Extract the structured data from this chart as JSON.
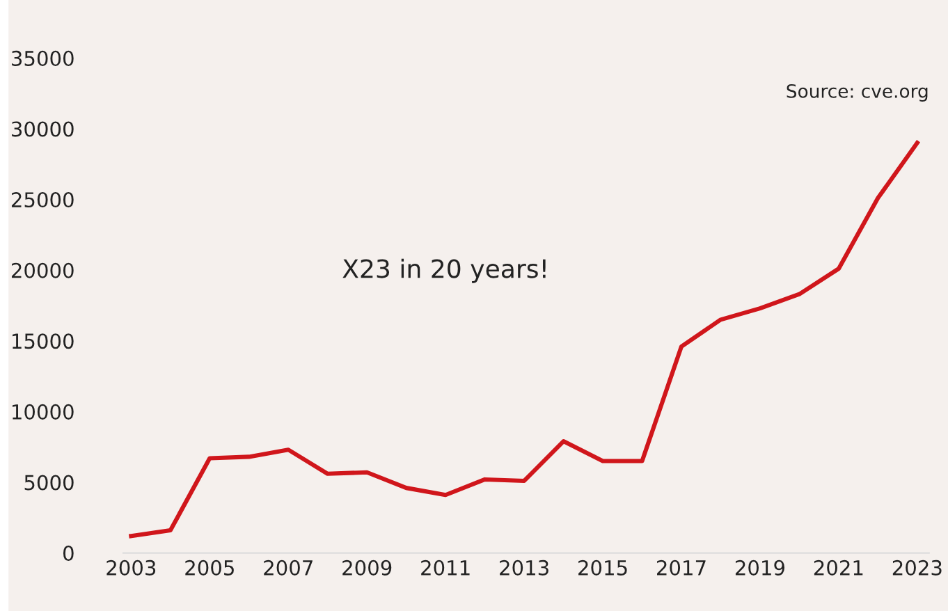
{
  "chart_data": {
    "type": "line",
    "x": [
      2003,
      2004,
      2005,
      2006,
      2007,
      2008,
      2009,
      2010,
      2011,
      2012,
      2013,
      2014,
      2015,
      2016,
      2017,
      2018,
      2019,
      2020,
      2021,
      2022,
      2023
    ],
    "series": [
      {
        "color": "#d0161b",
        "values": [
          1200,
          1600,
          6700,
          6800,
          7300,
          5600,
          5700,
          4600,
          4100,
          5200,
          5100,
          7900,
          6500,
          6500,
          14600,
          16500,
          17300,
          18300,
          20100,
          25100,
          29000
        ]
      }
    ],
    "xlim": [
      2002.8,
      2023.3
    ],
    "xticks": [
      2003,
      2005,
      2007,
      2009,
      2011,
      2013,
      2015,
      2017,
      2019,
      2021,
      2023
    ],
    "ylim": [
      0,
      35000
    ],
    "yticks": [
      0,
      5000,
      10000,
      15000,
      20000,
      25000,
      30000,
      35000
    ],
    "grid": false,
    "legend": false,
    "marker": "none",
    "line_style": "solid",
    "annotations": [
      "X23 in 20 years!",
      "Source: cve.org"
    ]
  }
}
